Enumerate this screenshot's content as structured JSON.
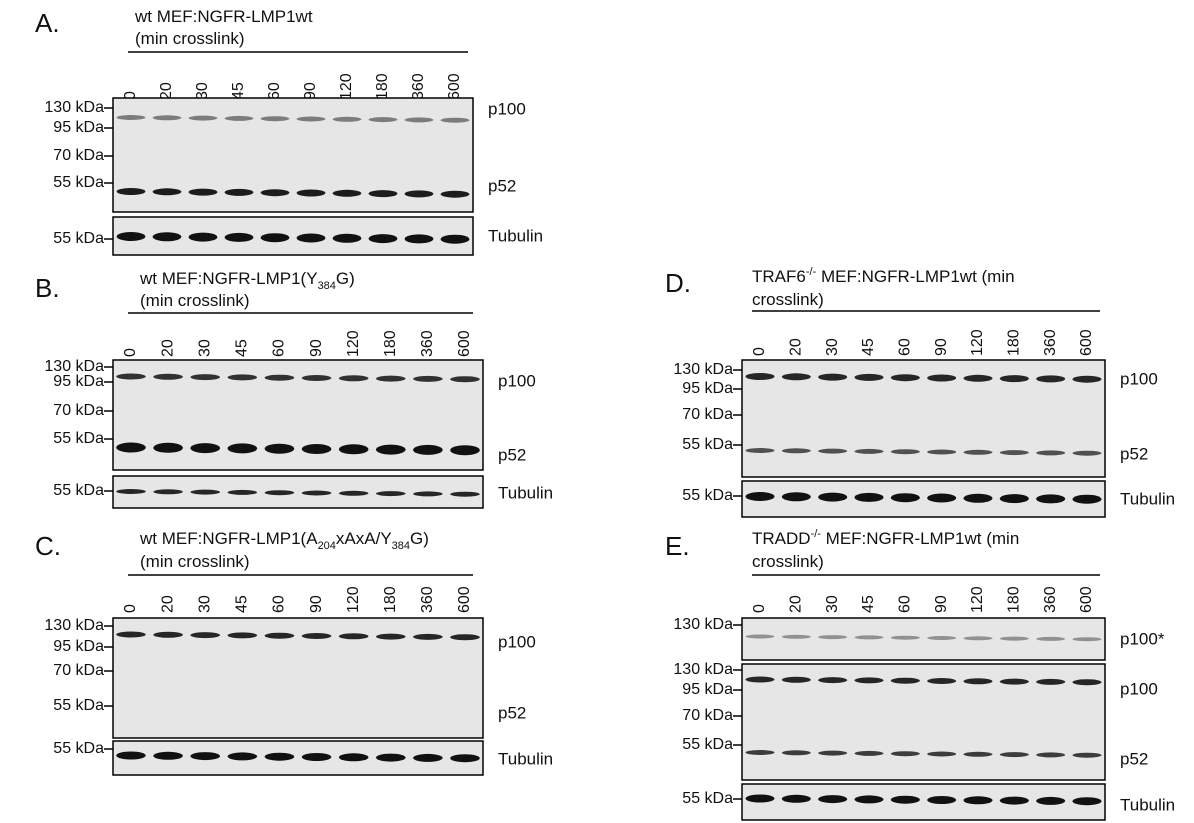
{
  "panels": [
    {
      "label": "A.",
      "title": [
        [
          {
            "text": "wt MEF:NGFR-LMP1wt"
          }
        ],
        [
          {
            "text": "(min crosslink)"
          }
        ]
      ],
      "lanes": [
        "0",
        "20",
        "30",
        "45",
        "60",
        "90",
        "120",
        "180",
        "360",
        "600"
      ],
      "blots": [
        {
          "markers": [
            "130 kDa",
            "95 kDa",
            "70 kDa",
            "55 kDa"
          ],
          "bands": [
            "p100",
            "p52"
          ]
        },
        {
          "markers": [
            "55 kDa"
          ],
          "bands": [
            "Tubulin"
          ]
        }
      ]
    },
    {
      "label": "B.",
      "title": [
        [
          {
            "text": "wt MEF:NGFR-LMP1(Y"
          },
          {
            "sub": "384"
          },
          {
            "text": "G)"
          }
        ],
        [
          {
            "text": "(min crosslink)"
          }
        ]
      ],
      "lanes": [
        "0",
        "20",
        "30",
        "45",
        "60",
        "90",
        "120",
        "180",
        "360",
        "600"
      ],
      "blots": [
        {
          "markers": [
            "130 kDa",
            "95 kDa",
            "70 kDa",
            "55 kDa"
          ],
          "bands": [
            "p100",
            "p52"
          ]
        },
        {
          "markers": [
            "55 kDa"
          ],
          "bands": [
            "Tubulin"
          ]
        }
      ]
    },
    {
      "label": "C.",
      "title": [
        [
          {
            "text": "wt MEF:NGFR-LMP1(A"
          },
          {
            "sub": "204"
          },
          {
            "text": "xAxA/Y"
          },
          {
            "sub": "384"
          },
          {
            "text": "G)"
          }
        ],
        [
          {
            "text": "(min crosslink)"
          }
        ]
      ],
      "lanes": [
        "0",
        "20",
        "30",
        "45",
        "60",
        "90",
        "120",
        "180",
        "360",
        "600"
      ],
      "blots": [
        {
          "markers": [
            "130 kDa",
            "95 kDa",
            "70 kDa",
            "55 kDa"
          ],
          "bands": [
            "p100",
            "p52"
          ]
        },
        {
          "markers": [
            "55 kDa"
          ],
          "bands": [
            "Tubulin"
          ]
        }
      ]
    },
    {
      "label": "D.",
      "title": [
        [
          {
            "text": "TRAF6"
          },
          {
            "sup": "-/-"
          },
          {
            "text": " MEF:NGFR-LMP1wt  (min"
          }
        ],
        [
          {
            "text": "crosslink)"
          }
        ]
      ],
      "lanes": [
        "0",
        "20",
        "30",
        "45",
        "60",
        "90",
        "120",
        "180",
        "360",
        "600"
      ],
      "blots": [
        {
          "markers": [
            "130 kDa",
            "95 kDa",
            "70 kDa",
            "55 kDa"
          ],
          "bands": [
            "p100",
            "p52"
          ]
        },
        {
          "markers": [
            "55 kDa"
          ],
          "bands": [
            "Tubulin"
          ]
        }
      ]
    },
    {
      "label": "E.",
      "title": [
        [
          {
            "text": "TRADD"
          },
          {
            "sup": "-/-"
          },
          {
            "text": " MEF:NGFR-LMP1wt  (min"
          }
        ],
        [
          {
            "text": "crosslink)"
          }
        ]
      ],
      "lanes": [
        "0",
        "20",
        "30",
        "45",
        "60",
        "90",
        "120",
        "180",
        "360",
        "600"
      ],
      "blots": [
        {
          "markers": [
            "130 kDa"
          ],
          "bands": [
            "p100*"
          ]
        },
        {
          "markers": [
            "130 kDa",
            "95 kDa",
            "70 kDa",
            "55 kDa"
          ],
          "bands": [
            "p100",
            "p52"
          ]
        },
        {
          "markers": [
            "55 kDa"
          ],
          "bands": [
            "Tubulin"
          ]
        }
      ]
    }
  ]
}
